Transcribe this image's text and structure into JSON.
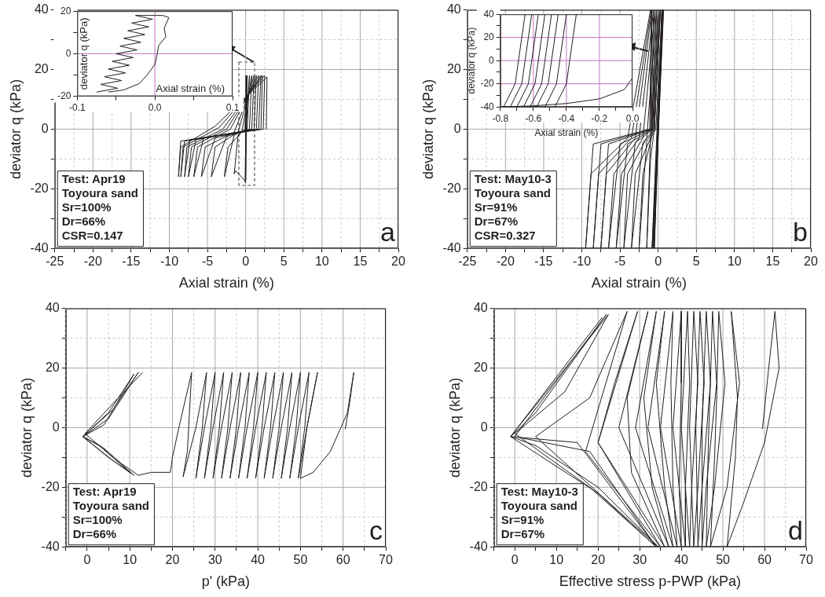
{
  "chart_data": [
    {
      "type": "line",
      "xlabel": "Axial strain (%)",
      "ylabel": "deviator q (kPa)",
      "color": "#231f20",
      "grid": true,
      "xlim": [
        -25,
        20
      ],
      "xticks": [
        -25,
        {
          "value": -22.5,
          "label": null
        },
        -20,
        {
          "value": -17.5,
          "label": null
        },
        -15,
        {
          "value": -12.5,
          "label": null
        },
        -10,
        {
          "value": -7.5,
          "label": null
        },
        -5,
        {
          "value": -2.5,
          "label": null
        },
        0,
        {
          "value": 2.5,
          "label": null
        },
        5,
        {
          "value": 7.5,
          "label": null
        },
        10,
        {
          "value": 12.5,
          "label": null
        },
        15,
        {
          "value": 17.5,
          "label": null
        },
        20
      ],
      "ylim": [
        -40,
        40
      ],
      "yticks": [
        -40,
        {
          "value": -30,
          "label": null
        },
        -20,
        {
          "value": -10,
          "label": null
        },
        0,
        {
          "value": 10,
          "label": null
        },
        20,
        {
          "value": 30,
          "label": null
        },
        40
      ],
      "x": [
        0,
        0.05,
        -0.05,
        0.1,
        0,
        0.2,
        -0.1,
        -1,
        -1.5,
        -1.3,
        0,
        0,
        0.5,
        0.2,
        -1.5,
        -2.8,
        -2.3,
        -0.5,
        0.8,
        0.5,
        -2.5,
        -4.5,
        -4,
        -1,
        1.1,
        0.8,
        -4,
        -5.8,
        -5.3,
        -1.5,
        1.4,
        1.1,
        -5.5,
        -6.8,
        -6.3,
        -2,
        1.7,
        1.4,
        -6.5,
        -7.5,
        -7.1,
        -2.5,
        2,
        1.7,
        -7.3,
        -8,
        -7.7,
        -3,
        2.2,
        2,
        -8,
        -8.5,
        -8.2,
        -3.5,
        2.5,
        2.3,
        -8.5,
        -8.8,
        -8.5,
        -4,
        2.8,
        2.7
      ],
      "values": [
        0,
        18,
        -18,
        18,
        -17,
        18,
        0,
        -2,
        -15,
        -14,
        -17.5,
        -1,
        18,
        0,
        -2,
        -16,
        -6,
        -1,
        18,
        0,
        -2.5,
        -16,
        -6,
        -1,
        18,
        0,
        -3,
        -16,
        -6,
        -1,
        18,
        0,
        -3,
        -16,
        -6,
        0,
        18,
        0,
        -3.5,
        -16,
        -6,
        0,
        18,
        0,
        -3.5,
        -16,
        -6,
        0,
        18,
        0,
        -4,
        -16,
        -6,
        0.5,
        18,
        0,
        -4,
        -16,
        -6,
        1,
        17.5,
        0
      ],
      "annotations": [
        "Test: Apr19",
        "Toyoura sand",
        "Sr=100%",
        "Dr=66%",
        "CSR=0.147",
        "a"
      ]
    },
    {
      "type": "line",
      "xlabel": "Axial strain (%)",
      "ylabel": "deviator q (kPa)",
      "color": "#231f20",
      "xlim": [
        -0.1,
        0.1
      ],
      "xticks": [
        -0.1,
        {
          "value": -0.05,
          "label": null
        },
        {
          "value": 0,
          "label": "0.0"
        },
        {
          "value": 0.05,
          "label": null
        },
        0.1
      ],
      "ylim": [
        -20,
        20
      ],
      "yticks": [
        -20,
        {
          "value": -10,
          "label": null
        },
        0,
        {
          "value": 10,
          "label": null
        },
        20
      ],
      "ref_lines": [
        {
          "axis": "x",
          "value": 0,
          "color": "#cc88cc"
        },
        {
          "axis": "y",
          "value": 0,
          "color": "#cc88cc"
        }
      ],
      "x": [
        -0.075,
        -0.048,
        -0.07,
        -0.043,
        -0.065,
        -0.038,
        -0.06,
        -0.033,
        -0.055,
        -0.028,
        -0.05,
        -0.023,
        -0.045,
        -0.018,
        -0.04,
        -0.013,
        -0.035,
        -0.008,
        -0.03,
        -0.003,
        -0.025,
        -0.02,
        0.01,
        0.018,
        0.012,
        0.014,
        0.005,
        0.003,
        0,
        -0.01,
        -0.02,
        -0.04,
        -0.06
      ],
      "values": [
        -18,
        -16.2,
        -14.4,
        -12.6,
        -10.8,
        -9,
        -7.2,
        -5.4,
        -3.6,
        -1.8,
        0,
        1.8,
        3.6,
        5.4,
        7.2,
        9,
        10.8,
        12.6,
        14.4,
        16.2,
        18,
        18,
        18,
        17,
        12,
        8,
        4,
        0,
        -5,
        -10,
        -14,
        -17,
        -18
      ]
    },
    {
      "type": "line",
      "xlabel": "Axial strain (%)",
      "ylabel": "deviator q (kPa)",
      "color": "#231f20",
      "grid": true,
      "xlim": [
        -25,
        20
      ],
      "xticks": [
        -25,
        {
          "value": -22.5,
          "label": null
        },
        -20,
        {
          "value": -17.5,
          "label": null
        },
        -15,
        {
          "value": -12.5,
          "label": null
        },
        -10,
        {
          "value": -7.5,
          "label": null
        },
        -5,
        {
          "value": -2.5,
          "label": null
        },
        0,
        {
          "value": 2.5,
          "label": null
        },
        5,
        {
          "value": 7.5,
          "label": null
        },
        10,
        {
          "value": 12.5,
          "label": null
        },
        15,
        {
          "value": 17.5,
          "label": null
        },
        20
      ],
      "ylim": [
        -40,
        40
      ],
      "yticks": [
        -40,
        {
          "value": -30,
          "label": null
        },
        -20,
        {
          "value": -10,
          "label": null
        },
        0,
        {
          "value": 10,
          "label": null
        },
        20,
        {
          "value": 30,
          "label": null
        },
        40
      ],
      "x": [
        0,
        0.5,
        -0.5,
        0.6,
        -0.6,
        0.7,
        -0.7,
        0.6,
        -0.8,
        0.5,
        -0.3,
        -1,
        -1.5,
        -1,
        -0.5,
        0.3,
        -0.5,
        -1.5,
        -2.5,
        -2,
        -0.8,
        0.2,
        -0.5,
        -2,
        -3.5,
        -3,
        -1,
        0,
        -0.6,
        -3,
        -4.5,
        -4,
        -1.5,
        -0.2,
        -0.7,
        -4,
        -5.5,
        -4.8,
        -2,
        -0.4,
        -0.8,
        -5,
        -6.5,
        -5.8,
        -2.5,
        -0.6,
        -0.9,
        -6.5,
        -7.5,
        -6.8,
        -3,
        -0.8,
        -1,
        -7.5,
        -8.5,
        -7.8,
        -3.5,
        -0.9,
        -1.1,
        -8.5,
        -9.5,
        -8.8,
        -4,
        -1
      ],
      "values": [
        0,
        40,
        -40,
        40,
        -40,
        40,
        -40,
        40,
        -40,
        40,
        0,
        -3,
        -40,
        -10,
        0,
        40,
        0,
        -4,
        -40,
        -15,
        -2,
        40,
        0,
        -4.5,
        -40,
        -15,
        -3,
        40,
        0,
        -4.5,
        -40,
        -15,
        -3,
        40,
        0,
        -5,
        -40,
        -15,
        -3,
        40,
        0,
        -5,
        -40,
        -15,
        -3,
        40,
        0,
        -5,
        -40,
        -15,
        -3,
        40,
        0,
        -5,
        -40,
        -15,
        -3,
        40,
        0,
        -5,
        -40,
        -15,
        -3,
        40
      ],
      "annotations": [
        "Test: May10-3",
        "Toyoura sand",
        "Sr=91%",
        "Dr=67%",
        "CSR=0.327",
        "b"
      ]
    },
    {
      "type": "line",
      "xlabel": "Axial strain (%)",
      "ylabel": "deviator q (kPa)",
      "color": "#231f20",
      "xlim": [
        -0.8,
        0
      ],
      "xticks": [
        -0.8,
        {
          "value": -0.7,
          "label": null
        },
        -0.6,
        {
          "value": -0.5,
          "label": null
        },
        -0.4,
        {
          "value": -0.3,
          "label": null
        },
        -0.2,
        {
          "value": -0.1,
          "label": null
        },
        {
          "value": 0,
          "label": "0.0"
        }
      ],
      "ylim": [
        -40,
        40
      ],
      "yticks": [
        -40,
        {
          "value": -30,
          "label": null
        },
        -20,
        {
          "value": -10,
          "label": null
        },
        0,
        {
          "value": 10,
          "label": null
        },
        20,
        {
          "value": 30,
          "label": null
        },
        40
      ],
      "ref_lines": [
        {
          "axis": "x",
          "value": -0.6,
          "color": "#cc88cc"
        },
        {
          "axis": "x",
          "value": -0.4,
          "color": "#cc88cc"
        },
        {
          "axis": "x",
          "value": -0.2,
          "color": "#cc88cc"
        },
        {
          "axis": "y",
          "value": -20,
          "color": "#cc88cc"
        },
        {
          "axis": "y",
          "value": 0,
          "color": "#cc88cc"
        },
        {
          "axis": "y",
          "value": 20,
          "color": "#cc88cc"
        }
      ],
      "x": [
        0,
        -0.05,
        -0.2,
        -0.4,
        -0.6,
        -0.8,
        null,
        -0.47,
        -0.4,
        -0.38,
        -0.36,
        -0.34,
        null,
        -0.53,
        -0.46,
        -0.44,
        -0.42,
        -0.4,
        null,
        -0.58,
        -0.51,
        -0.49,
        -0.47,
        -0.45,
        null,
        -0.62,
        -0.55,
        -0.53,
        -0.51,
        -0.49,
        null,
        -0.66,
        -0.59,
        -0.57,
        -0.55,
        -0.53,
        null,
        -0.7,
        -0.63,
        -0.61,
        -0.59,
        -0.57,
        null,
        -0.74,
        -0.67,
        -0.65,
        -0.63,
        -0.61,
        null,
        -0.78,
        -0.71,
        -0.69,
        -0.67,
        -0.65
      ],
      "values": [
        -15,
        -25,
        -33,
        -37,
        -39,
        -40,
        null,
        -40,
        -20,
        0,
        20,
        40,
        null,
        -40,
        -20,
        0,
        20,
        40,
        null,
        -40,
        -20,
        0,
        20,
        40,
        null,
        -40,
        -20,
        0,
        20,
        40,
        null,
        -40,
        -20,
        0,
        20,
        40,
        null,
        -40,
        -20,
        0,
        20,
        40,
        null,
        -40,
        -20,
        0,
        20,
        40,
        null,
        -40,
        -20,
        0,
        20,
        40
      ]
    },
    {
      "type": "line",
      "xlabel": "p' (kPa)",
      "ylabel": "deviator q (kPa)",
      "color": "#231f20",
      "grid": true,
      "xlim": [
        -5,
        70
      ],
      "xticks": [
        {
          "value": -5,
          "label": null
        },
        0,
        {
          "value": 5,
          "label": null
        },
        10,
        {
          "value": 15,
          "label": null
        },
        20,
        {
          "value": 25,
          "label": null
        },
        30,
        {
          "value": 35,
          "label": null
        },
        40,
        {
          "value": 45,
          "label": null
        },
        50,
        {
          "value": 55,
          "label": null
        },
        60,
        {
          "value": 65,
          "label": null
        },
        70
      ],
      "ylim": [
        -40,
        40
      ],
      "yticks": [
        -40,
        {
          "value": -30,
          "label": null
        },
        -20,
        {
          "value": -10,
          "label": null
        },
        0,
        {
          "value": 10,
          "label": null
        },
        20,
        {
          "value": 30,
          "label": null
        },
        40
      ],
      "x": [
        60.5,
        61.5,
        62.5,
        61,
        57,
        53,
        50,
        51.5,
        54,
        51.5,
        49.5,
        51,
        52,
        49.5,
        47.5,
        49,
        50,
        47.5,
        45.5,
        47,
        48,
        45.5,
        43.5,
        45,
        46,
        43.5,
        41.5,
        43,
        44,
        41.5,
        39.5,
        41,
        42,
        39.5,
        37.5,
        39,
        40,
        37.5,
        35.5,
        37,
        38,
        35.5,
        33.5,
        35,
        36,
        33.5,
        31.5,
        33,
        34,
        31.5,
        29.5,
        31,
        32,
        29.5,
        27.5,
        29,
        30,
        27.5,
        25.5,
        27,
        28,
        25.5,
        22.5,
        23.5,
        24.5,
        21.5,
        20,
        19.5,
        15,
        12,
        8,
        3,
        -1,
        6,
        12,
        5,
        -1,
        5,
        11,
        4,
        -1,
        5,
        11,
        4,
        -1,
        6,
        10,
        2,
        -0.5,
        6,
        13
      ],
      "values": [
        -0.5,
        8,
        18.5,
        5,
        -8,
        -15,
        -17,
        0,
        18.5,
        0,
        -17,
        0,
        18.5,
        0,
        -17,
        0,
        18.5,
        0,
        -17,
        0,
        18.5,
        0,
        -17,
        0,
        18.5,
        0,
        -17,
        0,
        18.5,
        0,
        -17,
        0,
        18.5,
        0,
        -17,
        0,
        18.5,
        0,
        -17,
        0,
        18.5,
        0,
        -17,
        0,
        18.5,
        0,
        -17,
        0,
        18.5,
        0,
        -17,
        0,
        18.5,
        0,
        -17,
        0,
        18.5,
        0,
        -17,
        0,
        18.5,
        0,
        -16.5,
        -8,
        18.5,
        0,
        -10,
        -15,
        -15,
        -16,
        -12,
        -6,
        -3,
        6,
        18.5,
        3,
        -3,
        -10,
        -16,
        -7,
        -3,
        5,
        18,
        1,
        -3,
        -11,
        -15,
        -5,
        -2,
        8,
        18.5
      ],
      "annotations": [
        "Test: Apr19",
        "Toyoura sand",
        "Sr=100%",
        "Dr=66%",
        "c"
      ]
    },
    {
      "type": "line",
      "xlabel": "Effective stress p-PWP (kPa)",
      "ylabel": "deviator q (kPa)",
      "color": "#231f20",
      "grid": true,
      "xlim": [
        -5,
        70
      ],
      "xticks": [
        {
          "value": -5,
          "label": null
        },
        0,
        {
          "value": 5,
          "label": null
        },
        10,
        {
          "value": 15,
          "label": null
        },
        20,
        {
          "value": 25,
          "label": null
        },
        30,
        {
          "value": 35,
          "label": null
        },
        40,
        {
          "value": 45,
          "label": null
        },
        50,
        {
          "value": 55,
          "label": null
        },
        60,
        {
          "value": 65,
          "label": null
        },
        70
      ],
      "ylim": [
        -40,
        40
      ],
      "yticks": [
        -40,
        {
          "value": -30,
          "label": null
        },
        -20,
        {
          "value": -10,
          "label": null
        },
        0,
        {
          "value": 10,
          "label": null
        },
        20,
        {
          "value": 30,
          "label": null
        },
        40
      ],
      "x": [
        59.5,
        61,
        62.5,
        63.5,
        60,
        55,
        51,
        53,
        53.5,
        52,
        54,
        51,
        47,
        48,
        48.5,
        49,
        50.5,
        48,
        46,
        46.5,
        47,
        47.5,
        48.5,
        46,
        45,
        45,
        46,
        47,
        45,
        44,
        43.5,
        44.5,
        45.5,
        44,
        43,
        42,
        43,
        44,
        42.5,
        42,
        40,
        41.5,
        42,
        41,
        41,
        38,
        40,
        40,
        39.5,
        40,
        35,
        38,
        37.5,
        38,
        39,
        32,
        36,
        34,
        36,
        38,
        29,
        34,
        31,
        33,
        37,
        25,
        32,
        27,
        28,
        36,
        20,
        29.5,
        24,
        20,
        35,
        17,
        27,
        18,
        5,
        34.5,
        20,
        5,
        -1,
        22.5,
        12,
        0,
        18,
        34,
        18,
        0,
        22,
        5,
        -1,
        10,
        20,
        34,
        15,
        -1,
        21
      ],
      "values": [
        -0.5,
        20,
        39,
        20,
        -5,
        -25,
        -40,
        -10,
        10,
        39,
        15,
        -20,
        -40,
        -10,
        10,
        39,
        15,
        -20,
        -40,
        -5,
        15,
        39,
        15,
        -20,
        -40,
        0,
        39,
        15,
        -20,
        -40,
        0,
        39,
        15,
        -20,
        -40,
        0,
        39,
        15,
        -20,
        -40,
        0,
        39,
        15,
        -20,
        -40,
        0,
        39,
        15,
        -20,
        -40,
        0,
        39,
        15,
        -20,
        -40,
        0,
        39,
        15,
        -20,
        -40,
        0,
        39,
        10,
        -20,
        -40,
        0,
        39,
        10,
        -15,
        -40,
        -5,
        39,
        15,
        -5,
        -40,
        -8,
        39,
        10,
        -3,
        -40,
        -20,
        -6,
        -3,
        38,
        12,
        -2,
        -20,
        -40,
        -8,
        -3,
        38,
        5,
        -3,
        -13,
        -22,
        -40,
        -5,
        -3,
        37
      ],
      "annotations": [
        "Test: May10-3",
        "Toyoura sand",
        "Sr=91%",
        "Dr=67%",
        "d"
      ]
    }
  ]
}
